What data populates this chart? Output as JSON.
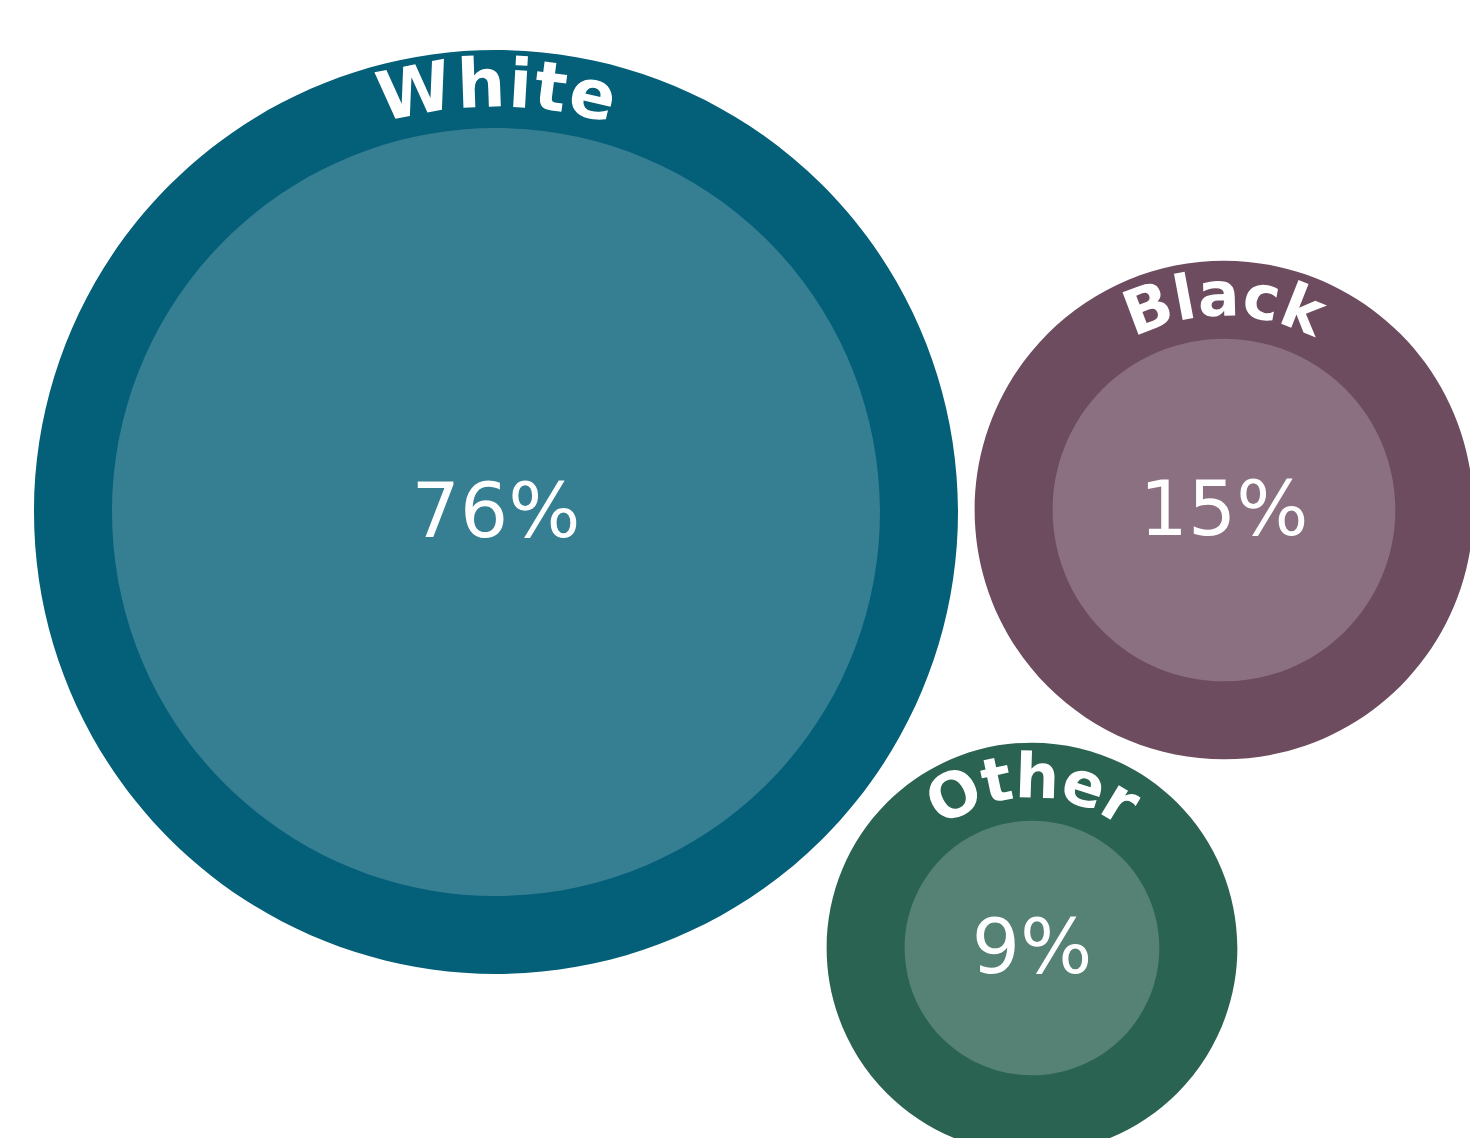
{
  "chart_data": {
    "type": "other",
    "categories": [
      "White",
      "Black",
      "Other"
    ],
    "values": [
      76,
      15,
      9
    ],
    "value_labels": [
      "76%",
      "15%",
      "9%"
    ],
    "colors": [
      "#367f93",
      "#8a7080",
      "#558274"
    ]
  }
}
